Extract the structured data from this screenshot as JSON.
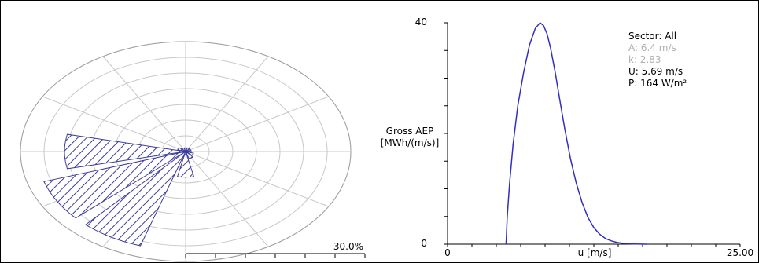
{
  "chart_data": [
    {
      "type": "polar-rose",
      "sectors": 12,
      "scale_label": "30.0%",
      "scale_max_percent": 30.0,
      "hatch_color": "#3c3c9c",
      "grid_color": "#c8c8c8",
      "values_percent": [
        1.0,
        1.0,
        1.0,
        1.0,
        1.5,
        2.0,
        7.0,
        27.0,
        27.0,
        22.0,
        1.5,
        1.0
      ],
      "grid": true
    },
    {
      "type": "line",
      "ylabel": "Gross AEP\n[MWh/(m/s)]",
      "ylabel_lines": [
        "Gross AEP",
        "[MWh/(m/s)]"
      ],
      "xlabel": "u [m/s]",
      "xlim": [
        0,
        25
      ],
      "ylim": [
        0,
        40
      ],
      "x_tick_labels": [
        "0",
        "25.00"
      ],
      "y_tick_labels": [
        "0",
        "40"
      ],
      "line_color": "#3030c0",
      "series": [
        {
          "x": [
            5.0,
            5.1,
            5.3,
            5.6,
            6.0,
            6.5,
            7.0,
            7.5,
            7.9,
            8.2,
            8.5,
            8.8,
            9.2,
            9.6,
            10.0,
            10.5,
            11.0,
            11.5,
            12.0,
            12.5,
            13.0,
            13.5,
            14.0,
            14.5,
            15.0,
            15.5,
            16.0,
            16.5,
            17.0
          ],
          "y": [
            0,
            5.0,
            11.0,
            18.0,
            25.0,
            31.0,
            36.0,
            39.0,
            40.0,
            39.5,
            38.0,
            35.5,
            31.0,
            26.0,
            21.0,
            15.5,
            11.0,
            7.5,
            4.8,
            3.0,
            1.8,
            1.0,
            0.6,
            0.3,
            0.15,
            0.08,
            0.04,
            0.02,
            0.0
          ]
        }
      ],
      "legend": {
        "sector": "Sector: All",
        "a": "A: 6.4 m/s",
        "k": "k: 2.83",
        "u": "U: 5.69 m/s",
        "p": "P: 164 W/m²"
      },
      "legend_colors": {
        "strong": "#000000",
        "faded": "#b0b0b0"
      }
    }
  ]
}
